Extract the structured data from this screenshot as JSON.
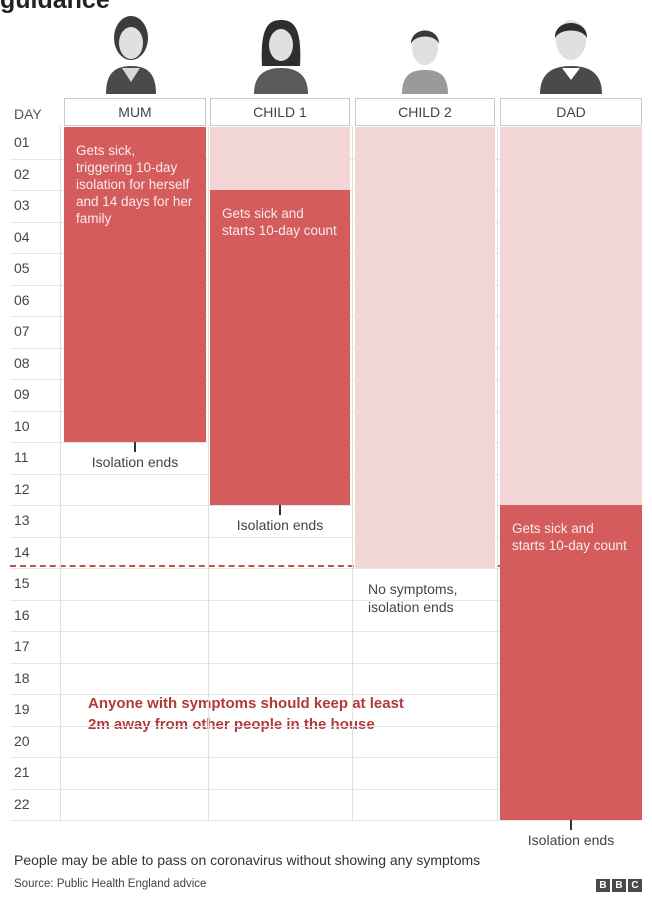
{
  "title": "guidance",
  "day_header": "DAY",
  "chart_data": {
    "type": "gantt",
    "days": [
      "01",
      "02",
      "03",
      "04",
      "05",
      "06",
      "07",
      "08",
      "09",
      "10",
      "11",
      "12",
      "13",
      "14",
      "15",
      "16",
      "17",
      "18",
      "19",
      "20",
      "21",
      "22"
    ],
    "columns": [
      {
        "name": "MUM",
        "household_isolation": [
          1,
          14
        ],
        "sick_start": 1,
        "isolation_end_day": 10,
        "sick_text": "Gets sick, triggering 10-day isolation for herself and 14 days for her family",
        "end_label": "Isolation ends"
      },
      {
        "name": "CHILD 1",
        "household_isolation": [
          1,
          14
        ],
        "sick_start": 3,
        "isolation_end_day": 12,
        "sick_text": "Gets sick and starts 10-day count",
        "end_label": "Isolation ends"
      },
      {
        "name": "CHILD 2",
        "household_isolation": [
          1,
          14
        ],
        "sick_start": null,
        "isolation_end_day": 14,
        "sick_text": "",
        "end_label": "No symptoms, isolation ends"
      },
      {
        "name": "DAD",
        "household_isolation": [
          1,
          14
        ],
        "sick_start": 13,
        "isolation_end_day": 22,
        "sick_text": "Gets sick and starts 10-day count",
        "end_label": "Isolation ends"
      }
    ],
    "colors": {
      "household": "#f2d6d6",
      "sick": "#d45c5c",
      "dash": "#b85a48"
    }
  },
  "advice": "Anyone with symptoms should keep at least 2m away from other people in the house",
  "footnote": "People may be able to pass on coronavirus without showing any symptoms",
  "source": "Source: Public Health England advice",
  "logo": [
    "B",
    "B",
    "C"
  ]
}
